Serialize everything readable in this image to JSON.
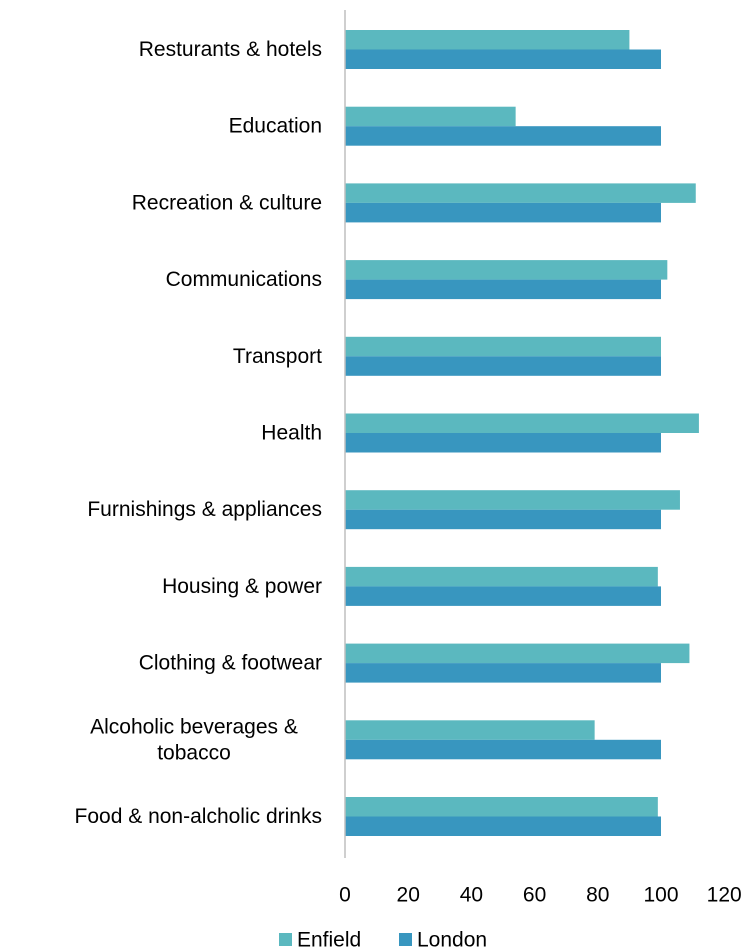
{
  "chart_data": {
    "type": "bar",
    "orientation": "horizontal",
    "categories": [
      "Resturants & hotels",
      "Education",
      "Recreation & culture",
      "Communications",
      "Transport",
      "Health",
      "Furnishings & appliances",
      "Housing & power",
      "Clothing & footwear",
      "Alcoholic beverages & tobacco",
      "Food & non-alcholic drinks"
    ],
    "category_lines": [
      [
        "Resturants & hotels"
      ],
      [
        "Education"
      ],
      [
        "Recreation & culture"
      ],
      [
        "Communications"
      ],
      [
        "Transport"
      ],
      [
        "Health"
      ],
      [
        "Furnishings & appliances"
      ],
      [
        "Housing & power"
      ],
      [
        "Clothing & footwear"
      ],
      [
        "Alcoholic beverages &",
        "tobacco"
      ],
      [
        "Food & non-alcholic drinks"
      ]
    ],
    "series": [
      {
        "name": "Enfield",
        "color": "#5BB8BF",
        "values": [
          90,
          54,
          111,
          102,
          100,
          112,
          106,
          99,
          109,
          79,
          99
        ]
      },
      {
        "name": "London",
        "color": "#3896BF",
        "values": [
          100,
          100,
          100,
          100,
          100,
          100,
          100,
          100,
          100,
          100,
          100
        ]
      }
    ],
    "xlim": [
      0,
      120
    ],
    "xticks": [
      "0",
      "20",
      "40",
      "60",
      "80",
      "100",
      "120"
    ],
    "xlabel": "",
    "ylabel": "",
    "title": "",
    "grid": false,
    "legend_position": "bottom"
  }
}
